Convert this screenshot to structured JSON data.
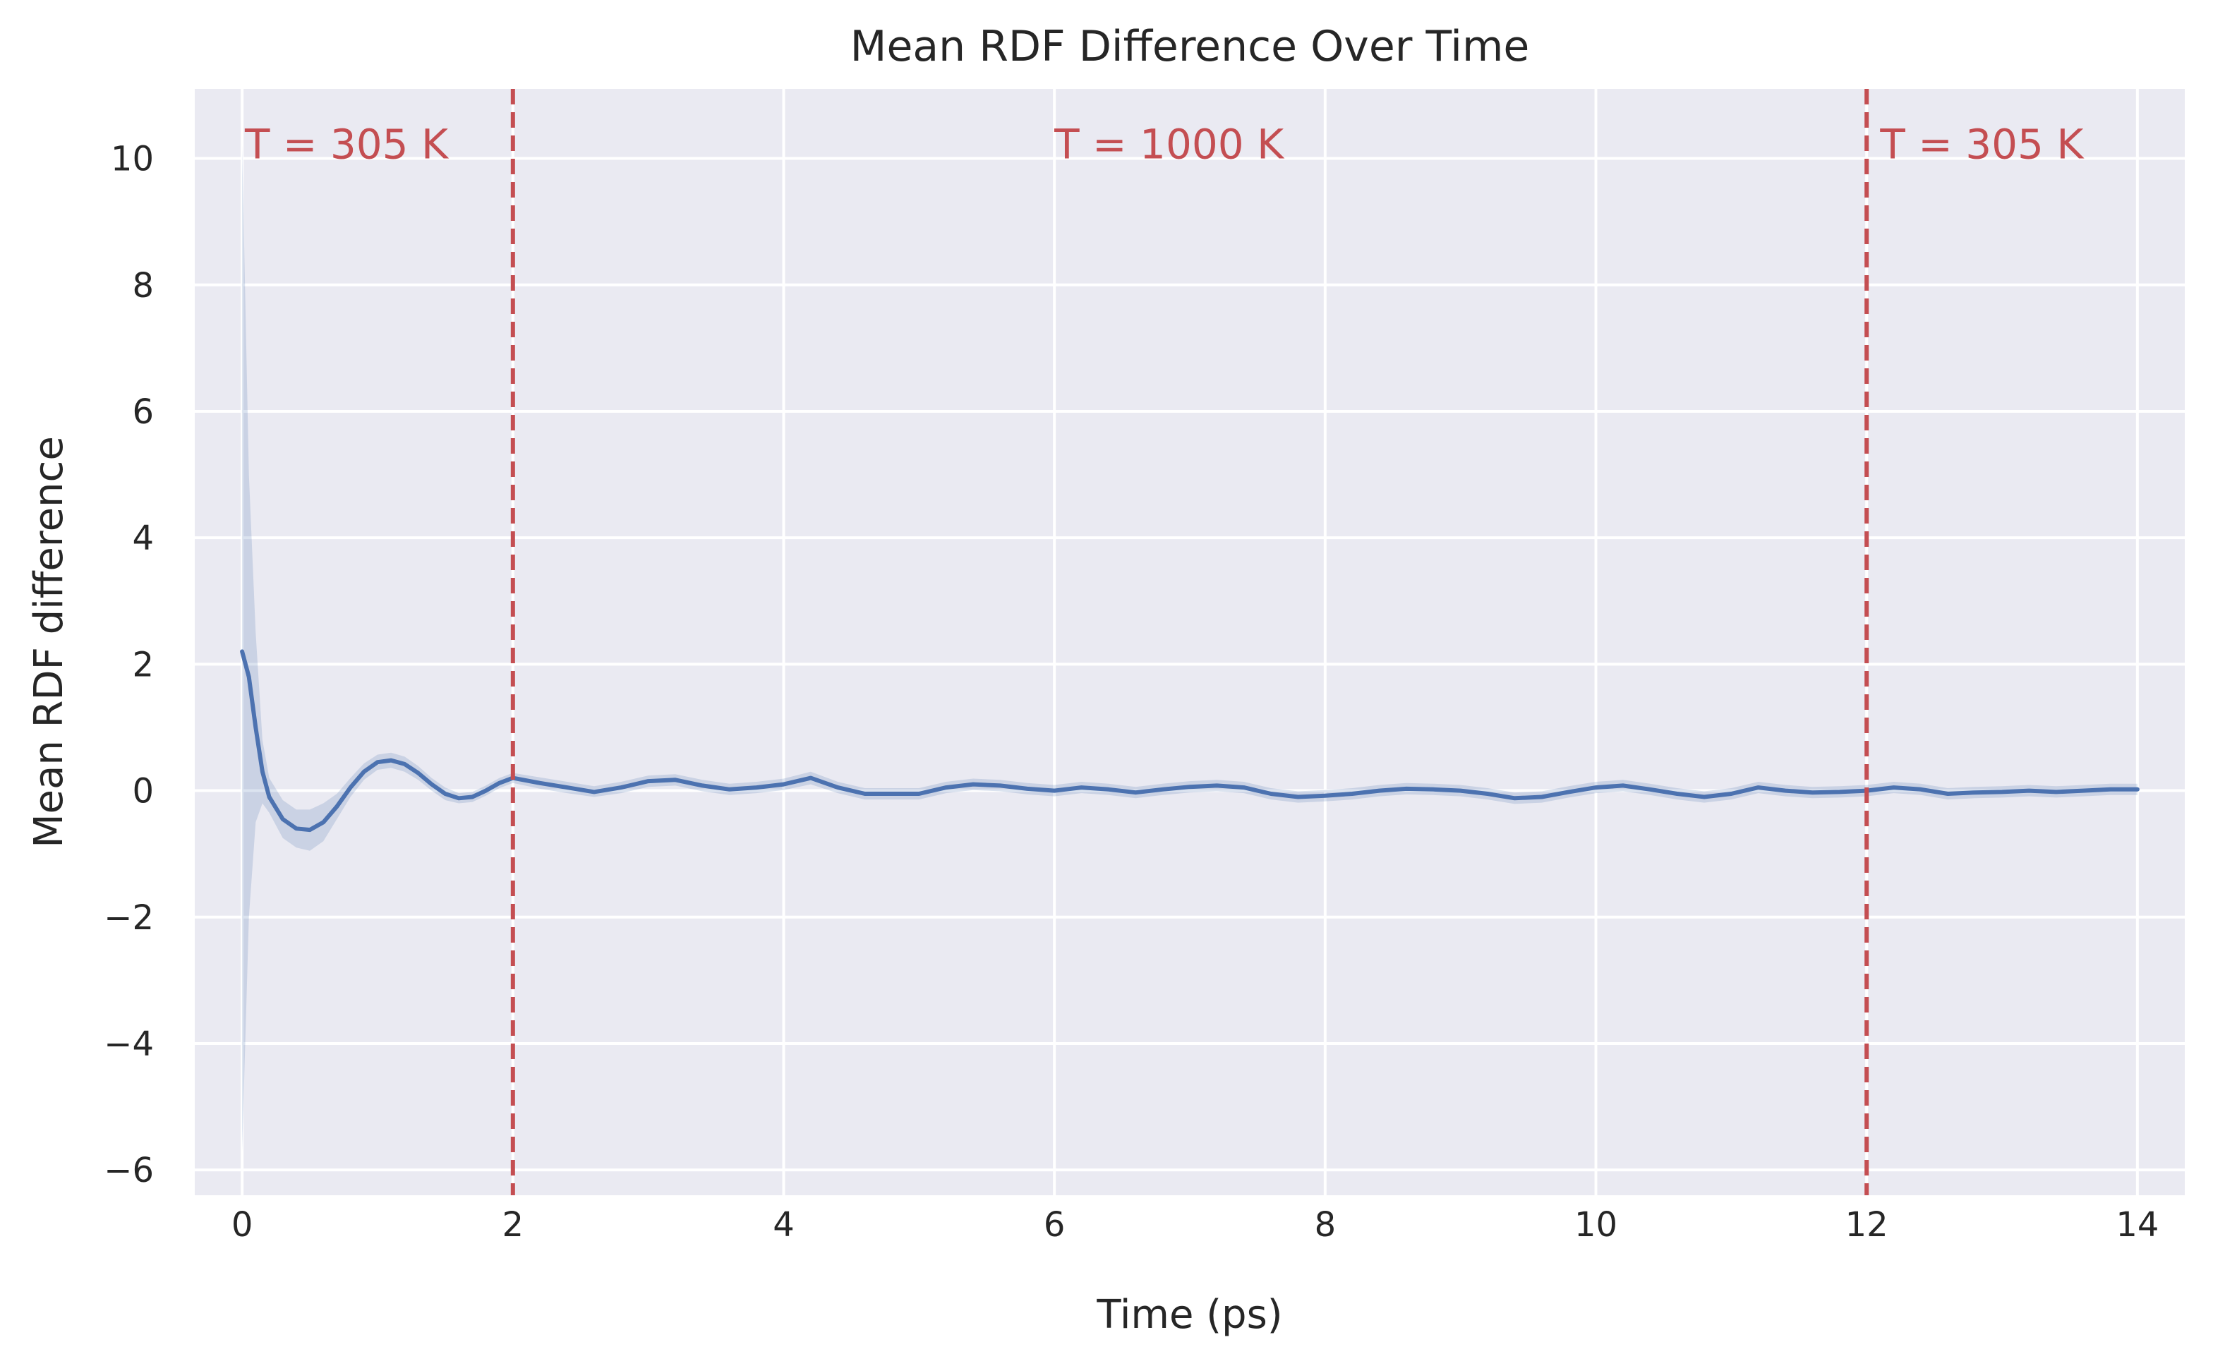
{
  "chart_data": {
    "type": "line",
    "title": "Mean RDF Difference Over Time",
    "xlabel": "Time (ps)",
    "ylabel": "Mean RDF difference",
    "xlim": [
      -0.35,
      14.35
    ],
    "ylim": [
      -6.4,
      11.1
    ],
    "xticks": [
      0,
      2,
      4,
      6,
      8,
      10,
      12,
      14
    ],
    "xtick_labels": [
      "0",
      "2",
      "4",
      "6",
      "8",
      "10",
      "12",
      "14"
    ],
    "yticks": [
      -6,
      -4,
      -2,
      0,
      2,
      4,
      6,
      8,
      10
    ],
    "ytick_labels": [
      "−6",
      "−4",
      "−2",
      "0",
      "2",
      "4",
      "6",
      "8",
      "10"
    ],
    "grid": true,
    "background": "#eaeaf2",
    "line_color": "#4c72b0",
    "band_color": "#4c72b0",
    "vline_color": "#c44e52",
    "series": [
      {
        "x": [
          0,
          0.05,
          0.1,
          0.15,
          0.2,
          0.3,
          0.4,
          0.5,
          0.6,
          0.7,
          0.8,
          0.9,
          1.0,
          1.1,
          1.2,
          1.3,
          1.4,
          1.5,
          1.6,
          1.7,
          1.8,
          1.9,
          2.0,
          2.2,
          2.4,
          2.6,
          2.8,
          3.0,
          3.2,
          3.4,
          3.6,
          3.8,
          4.0,
          4.2,
          4.4,
          4.6,
          4.8,
          5.0,
          5.2,
          5.4,
          5.6,
          5.8,
          6.0,
          6.2,
          6.4,
          6.6,
          6.8,
          7.0,
          7.2,
          7.4,
          7.6,
          7.8,
          8.0,
          8.2,
          8.4,
          8.6,
          8.8,
          9.0,
          9.2,
          9.4,
          9.6,
          9.8,
          10.0,
          10.2,
          10.4,
          10.6,
          10.8,
          11.0,
          11.2,
          11.4,
          11.6,
          11.8,
          12.0,
          12.2,
          12.4,
          12.6,
          12.8,
          13.0,
          13.2,
          13.4,
          13.6,
          13.8,
          14.0
        ],
        "y": [
          2.2,
          1.8,
          1.0,
          0.3,
          -0.1,
          -0.45,
          -0.6,
          -0.62,
          -0.5,
          -0.25,
          0.05,
          0.3,
          0.45,
          0.48,
          0.42,
          0.28,
          0.1,
          -0.05,
          -0.12,
          -0.1,
          0.0,
          0.12,
          0.2,
          0.12,
          0.05,
          -0.02,
          0.05,
          0.15,
          0.17,
          0.08,
          0.02,
          0.05,
          0.1,
          0.2,
          0.05,
          -0.05,
          -0.05,
          -0.05,
          0.05,
          0.1,
          0.08,
          0.03,
          0.0,
          0.05,
          0.02,
          -0.03,
          0.02,
          0.06,
          0.08,
          0.05,
          -0.05,
          -0.1,
          -0.08,
          -0.05,
          0.0,
          0.03,
          0.02,
          0.0,
          -0.05,
          -0.12,
          -0.1,
          -0.02,
          0.05,
          0.08,
          0.02,
          -0.05,
          -0.1,
          -0.05,
          0.05,
          0.0,
          -0.03,
          -0.02,
          0.0,
          0.05,
          0.02,
          -0.05,
          -0.03,
          -0.02,
          0.0,
          -0.02,
          0.0,
          0.02,
          0.02
        ],
        "lower": [
          -5.7,
          -2.0,
          -0.5,
          -0.2,
          -0.35,
          -0.75,
          -0.9,
          -0.95,
          -0.8,
          -0.45,
          -0.1,
          0.17,
          0.33,
          0.36,
          0.3,
          0.17,
          0.0,
          -0.15,
          -0.2,
          -0.18,
          -0.08,
          0.04,
          0.12,
          0.03,
          -0.04,
          -0.1,
          -0.04,
          0.06,
          0.08,
          -0.01,
          -0.07,
          -0.04,
          0.01,
          0.1,
          -0.04,
          -0.14,
          -0.14,
          -0.14,
          -0.04,
          0.01,
          -0.01,
          -0.06,
          -0.09,
          -0.04,
          -0.07,
          -0.12,
          -0.07,
          -0.03,
          -0.01,
          -0.04,
          -0.14,
          -0.19,
          -0.17,
          -0.14,
          -0.09,
          -0.06,
          -0.07,
          -0.09,
          -0.14,
          -0.21,
          -0.19,
          -0.11,
          -0.04,
          -0.01,
          -0.07,
          -0.14,
          -0.19,
          -0.14,
          -0.04,
          -0.09,
          -0.12,
          -0.11,
          -0.09,
          -0.04,
          -0.07,
          -0.14,
          -0.12,
          -0.11,
          -0.09,
          -0.11,
          -0.09,
          -0.07,
          -0.07
        ],
        "upper": [
          10.2,
          5.0,
          2.5,
          0.8,
          0.2,
          -0.15,
          -0.3,
          -0.3,
          -0.2,
          -0.05,
          0.2,
          0.43,
          0.57,
          0.6,
          0.54,
          0.39,
          0.2,
          0.05,
          -0.04,
          -0.02,
          0.08,
          0.2,
          0.28,
          0.21,
          0.14,
          0.07,
          0.14,
          0.24,
          0.26,
          0.17,
          0.11,
          0.14,
          0.19,
          0.3,
          0.14,
          0.04,
          0.04,
          0.04,
          0.14,
          0.19,
          0.17,
          0.12,
          0.09,
          0.14,
          0.11,
          0.06,
          0.11,
          0.15,
          0.17,
          0.14,
          0.04,
          -0.01,
          0.01,
          0.04,
          0.09,
          0.12,
          0.11,
          0.09,
          0.04,
          -0.03,
          -0.01,
          0.07,
          0.14,
          0.17,
          0.11,
          0.04,
          -0.01,
          0.04,
          0.14,
          0.09,
          0.06,
          0.07,
          0.09,
          0.14,
          0.11,
          0.04,
          0.06,
          0.07,
          0.09,
          0.07,
          0.09,
          0.11,
          0.11
        ]
      }
    ],
    "vlines": [
      2,
      12
    ],
    "annotations": [
      {
        "text": "T = 305 K",
        "x": 0.02,
        "y": 10.0
      },
      {
        "text": "T = 1000 K",
        "x": 6.0,
        "y": 10.0
      },
      {
        "text": "T = 305 K",
        "x": 12.1,
        "y": 10.0
      }
    ]
  }
}
